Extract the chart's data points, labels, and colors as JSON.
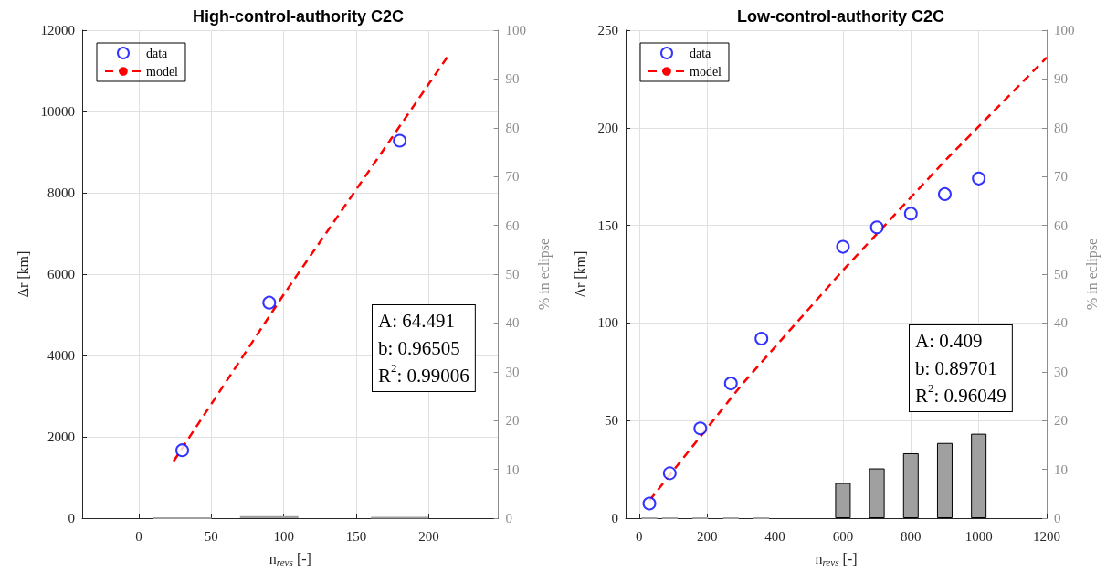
{
  "chart_data": [
    {
      "type": "scatter",
      "title": "High-control-authority C2C",
      "xlabel": "n$_{revs}$ [-]",
      "ylabel": "Δr [km]",
      "y2label": "% in eclipse",
      "xlim": [
        -39,
        248
      ],
      "xticks": [
        0,
        50,
        100,
        150,
        200
      ],
      "ylim": [
        0,
        12000
      ],
      "yticks": [
        0,
        2000,
        4000,
        6000,
        8000,
        10000,
        12000
      ],
      "y2lim": [
        0,
        100
      ],
      "y2ticks": [
        0,
        10,
        20,
        30,
        40,
        50,
        60,
        70,
        80,
        90,
        100
      ],
      "grid": true,
      "legend": "top left",
      "annotations": [
        "A: 64.491",
        "b: 0.96505",
        "R$^{2}$: 0.99006"
      ],
      "series": [
        {
          "name": "data",
          "marker": "circle",
          "color": "#0000ff",
          "x": [
            30,
            90,
            180
          ],
          "values": [
            1670,
            5300,
            9280
          ]
        },
        {
          "name": "model",
          "type": "line",
          "line_style": "dashed",
          "color": "#ff0000",
          "x": [
            24,
            100,
            160,
            214
          ],
          "values": [
            1400,
            5500,
            8600,
            11400
          ]
        },
        {
          "type": "bar",
          "axis": "y2",
          "color": "#a0a0a0",
          "x": [
            30,
            90,
            180
          ],
          "values": [
            0,
            0.4,
            0.2
          ]
        }
      ]
    },
    {
      "type": "scatter",
      "title": "Low-control-authority C2C",
      "xlabel": "n$_{revs}$ [-]",
      "ylabel": "Δr [km]",
      "y2label": "% in eclipse",
      "xlim": [
        -40,
        1200
      ],
      "xticks": [
        0,
        200,
        400,
        600,
        800,
        1000,
        1200
      ],
      "ylim": [
        0,
        250
      ],
      "yticks": [
        0,
        50,
        100,
        150,
        200,
        250
      ],
      "y2lim": [
        0,
        100
      ],
      "y2ticks": [
        0,
        10,
        20,
        30,
        40,
        50,
        60,
        70,
        80,
        90,
        100
      ],
      "grid": true,
      "legend": "top left",
      "annotations": [
        "A: 0.409",
        "b: 0.89701",
        "R$^{2}$: 0.96049"
      ],
      "series": [
        {
          "name": "data",
          "marker": "circle",
          "color": "#0000ff",
          "x": [
            30,
            90,
            180,
            270,
            360,
            600,
            700,
            800,
            900,
            1000
          ],
          "values": [
            7.5,
            23,
            46,
            69,
            92,
            139,
            149,
            156,
            166,
            174
          ]
        },
        {
          "name": "model",
          "type": "line",
          "line_style": "dashed",
          "color": "#ff0000",
          "x": [
            30,
            300,
            600,
            900,
            1200
          ],
          "values": [
            9,
            68,
            127,
            183,
            236
          ]
        },
        {
          "type": "bar",
          "axis": "y2",
          "color": "#a0a0a0",
          "x": [
            30,
            90,
            180,
            270,
            360,
            600,
            700,
            800,
            900,
            1000
          ],
          "values": [
            0,
            0,
            0,
            0,
            0,
            7.2,
            10.2,
            13.3,
            15.4,
            17.3
          ]
        }
      ]
    }
  ]
}
